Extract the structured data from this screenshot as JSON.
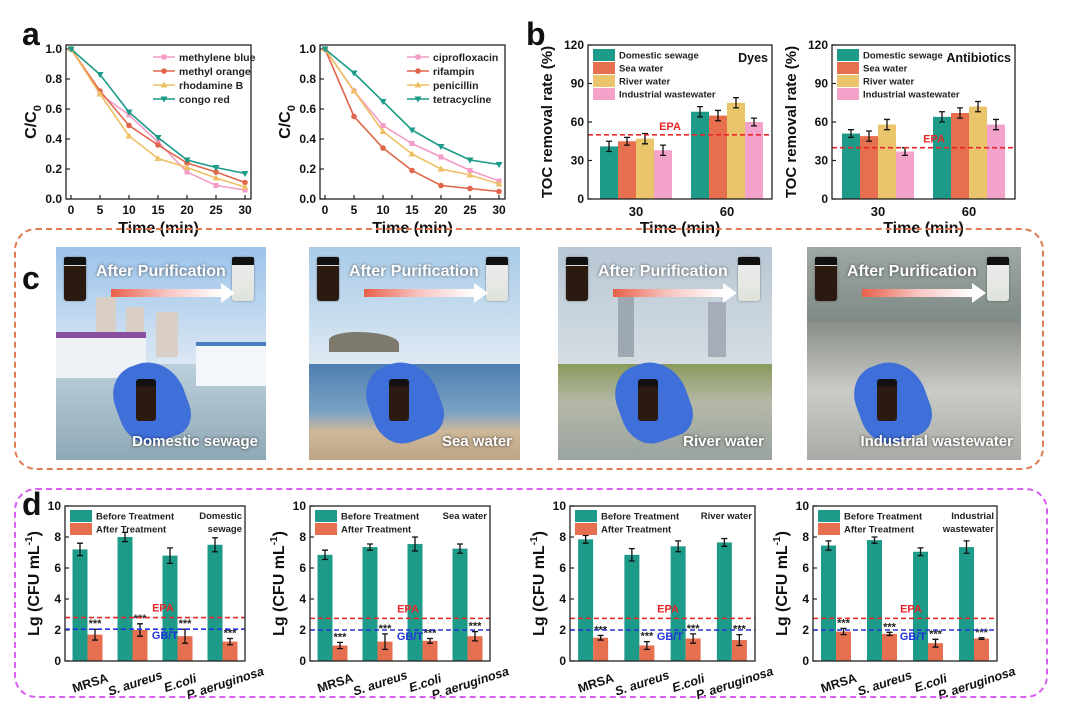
{
  "panel_labels": {
    "a": "a",
    "b": "b",
    "c": "c",
    "d": "d"
  },
  "colors": {
    "teal": "#1e9b88",
    "orange": "#e66f4f",
    "yellow": "#ebc56b",
    "pink": "#f3a2c9",
    "epa": "#e8262a",
    "gbt": "#2233dd"
  },
  "panel_c": {
    "after_label": "After Purification",
    "photos": [
      {
        "caption": "Domestic sewage"
      },
      {
        "caption": "Sea water"
      },
      {
        "caption": "River water"
      },
      {
        "caption": "Industrial wastewater"
      }
    ]
  },
  "chart_data": [
    {
      "panel": "a",
      "type": "line",
      "title": "",
      "xlabel": "Time (min)",
      "ylabel": "C/C",
      "ylabel_sub": "0",
      "x": [
        0,
        5,
        10,
        15,
        20,
        25,
        30
      ],
      "xlim": [
        0,
        30
      ],
      "ylim": [
        0,
        1.0
      ],
      "xticks": [
        "0",
        "5",
        "10",
        "15",
        "20",
        "25",
        "30"
      ],
      "yticks": [
        "0.0",
        "0.2",
        "0.4",
        "0.6",
        "0.8",
        "1.0"
      ],
      "legend": "top-right",
      "series": [
        {
          "name": "methylene blue",
          "color": "#f49bc7",
          "marker": "square",
          "values": [
            1.0,
            0.7,
            0.56,
            0.38,
            0.18,
            0.09,
            0.06
          ]
        },
        {
          "name": "methyl orange",
          "color": "#e0654a",
          "marker": "circle",
          "values": [
            1.0,
            0.72,
            0.49,
            0.36,
            0.24,
            0.18,
            0.11
          ]
        },
        {
          "name": "rhodamine B",
          "color": "#eebf63",
          "marker": "triangle-up",
          "values": [
            1.0,
            0.7,
            0.42,
            0.27,
            0.21,
            0.14,
            0.08
          ]
        },
        {
          "name": "congo red",
          "color": "#1a9a87",
          "marker": "triangle-down",
          "values": [
            1.0,
            0.83,
            0.58,
            0.41,
            0.26,
            0.21,
            0.17
          ]
        }
      ]
    },
    {
      "panel": "a",
      "type": "line",
      "title": "",
      "xlabel": "Time (min)",
      "ylabel": "C/C",
      "ylabel_sub": "0",
      "x": [
        0,
        5,
        10,
        15,
        20,
        25,
        30
      ],
      "xlim": [
        0,
        30
      ],
      "ylim": [
        0,
        1.0
      ],
      "xticks": [
        "0",
        "5",
        "10",
        "15",
        "20",
        "25",
        "30"
      ],
      "yticks": [
        "0.0",
        "0.2",
        "0.4",
        "0.6",
        "0.8",
        "1.0"
      ],
      "legend": "top-right",
      "series": [
        {
          "name": "ciprofloxacin",
          "color": "#f49bc7",
          "marker": "square",
          "values": [
            1.0,
            0.72,
            0.49,
            0.37,
            0.28,
            0.19,
            0.12
          ]
        },
        {
          "name": "rifampin",
          "color": "#e0654a",
          "marker": "circle",
          "values": [
            1.0,
            0.55,
            0.34,
            0.19,
            0.09,
            0.07,
            0.05
          ]
        },
        {
          "name": "penicillin",
          "color": "#eebf63",
          "marker": "triangle-up",
          "values": [
            1.0,
            0.72,
            0.45,
            0.3,
            0.2,
            0.16,
            0.1
          ]
        },
        {
          "name": "tetracycline",
          "color": "#1a9a87",
          "marker": "triangle-down",
          "values": [
            1.0,
            0.84,
            0.65,
            0.46,
            0.35,
            0.26,
            0.23
          ]
        }
      ]
    },
    {
      "panel": "b",
      "type": "bar",
      "title": "Dyes",
      "xlabel": "Time (min)",
      "ylabel": "TOC removal rate (%)",
      "categories": [
        "30",
        "60"
      ],
      "ylim": [
        0,
        120
      ],
      "yticks": [
        "0",
        "30",
        "60",
        "90",
        "120"
      ],
      "legend": "top-left",
      "series": [
        {
          "name": "Domestic sewage",
          "color": "#1e9b88",
          "values": [
            41,
            68
          ],
          "errors": [
            4,
            4
          ]
        },
        {
          "name": "Sea water",
          "color": "#e66f4f",
          "values": [
            45,
            65
          ],
          "errors": [
            3,
            4
          ]
        },
        {
          "name": "River water",
          "color": "#ebc56b",
          "values": [
            47,
            75
          ],
          "errors": [
            4,
            4
          ]
        },
        {
          "name": "Industrial wastewater",
          "color": "#f3a2c9",
          "values": [
            38,
            60
          ],
          "errors": [
            4,
            3
          ]
        }
      ],
      "reference_lines": [
        {
          "label": "EPA",
          "value": 50,
          "color": "#e8262a"
        }
      ]
    },
    {
      "panel": "b",
      "type": "bar",
      "title": "Antibiotics",
      "xlabel": "Time (min)",
      "ylabel": "TOC removal rate (%)",
      "categories": [
        "30",
        "60"
      ],
      "ylim": [
        0,
        120
      ],
      "yticks": [
        "0",
        "30",
        "60",
        "90",
        "120"
      ],
      "legend": "top-left",
      "series": [
        {
          "name": "Domestic sewage",
          "color": "#1e9b88",
          "values": [
            51,
            64
          ],
          "errors": [
            3,
            4
          ]
        },
        {
          "name": "Sea water",
          "color": "#e66f4f",
          "values": [
            49,
            67
          ],
          "errors": [
            4,
            4
          ]
        },
        {
          "name": "River water",
          "color": "#ebc56b",
          "values": [
            58,
            72
          ],
          "errors": [
            4,
            4
          ]
        },
        {
          "name": "Industrial wastewater",
          "color": "#f3a2c9",
          "values": [
            37,
            58
          ],
          "errors": [
            3,
            4
          ]
        }
      ],
      "reference_lines": [
        {
          "label": "EPA",
          "value": 40,
          "color": "#e8262a"
        }
      ]
    },
    {
      "panel": "d",
      "type": "bar",
      "title": "Domestic sewage",
      "xlabel": "",
      "ylabel": "Lg (CFU mL",
      "ylabel_sup": "-1",
      "ylabel_tail": ")",
      "categories": [
        "MRSA",
        "S. aureus",
        "E.coli",
        "P. aeruginosa"
      ],
      "ylim": [
        0,
        10
      ],
      "yticks": [
        "0",
        "2",
        "4",
        "6",
        "8",
        "10"
      ],
      "legend": "top-left",
      "series": [
        {
          "name": "Before Treatment",
          "color": "#1e9b88",
          "values": [
            7.2,
            8.0,
            6.8,
            7.5
          ],
          "errors": [
            0.4,
            0.3,
            0.5,
            0.45
          ]
        },
        {
          "name": "After Treatment",
          "color": "#e66f4f",
          "values": [
            1.7,
            2.0,
            1.6,
            1.25
          ],
          "errors": [
            0.35,
            0.4,
            0.45,
            0.2
          ]
        }
      ],
      "significance": [
        "***",
        "***",
        "***",
        "***"
      ],
      "reference_lines": [
        {
          "label": "EPA",
          "value": 2.8,
          "color": "#e8262a"
        },
        {
          "label": "GB/T",
          "value": 2.05,
          "color": "#2233dd"
        }
      ]
    },
    {
      "panel": "d",
      "type": "bar",
      "title": "Sea water",
      "xlabel": "",
      "ylabel": "Lg (CFU mL",
      "ylabel_sup": "-1",
      "ylabel_tail": ")",
      "categories": [
        "MRSA",
        "S. aureus",
        "E.coli",
        "P. aeruginosa"
      ],
      "ylim": [
        0,
        10
      ],
      "yticks": [
        "0",
        "2",
        "4",
        "6",
        "8",
        "10"
      ],
      "legend": "top-left",
      "series": [
        {
          "name": "Before Treatment",
          "color": "#1e9b88",
          "values": [
            6.85,
            7.35,
            7.55,
            7.25
          ],
          "errors": [
            0.3,
            0.2,
            0.45,
            0.3
          ]
        },
        {
          "name": "After Treatment",
          "color": "#e66f4f",
          "values": [
            1.0,
            1.25,
            1.3,
            1.6
          ],
          "errors": [
            0.2,
            0.5,
            0.15,
            0.3
          ]
        }
      ],
      "significance": [
        "***",
        "***",
        "***",
        "***"
      ],
      "reference_lines": [
        {
          "label": "EPA",
          "value": 2.75,
          "color": "#e8262a"
        },
        {
          "label": "GB/T",
          "value": 2.0,
          "color": "#2233dd"
        }
      ]
    },
    {
      "panel": "d",
      "type": "bar",
      "title": "River water",
      "xlabel": "",
      "ylabel": "Lg (CFU mL",
      "ylabel_sup": "-1",
      "ylabel_tail": ")",
      "categories": [
        "MRSA",
        "S. aureus",
        "E.coli",
        "P. aeruginosa"
      ],
      "ylim": [
        0,
        10
      ],
      "yticks": [
        "0",
        "2",
        "4",
        "6",
        "8",
        "10"
      ],
      "legend": "top-left",
      "series": [
        {
          "name": "Before Treatment",
          "color": "#1e9b88",
          "values": [
            7.85,
            6.85,
            7.4,
            7.65
          ],
          "errors": [
            0.25,
            0.4,
            0.35,
            0.25
          ]
        },
        {
          "name": "After Treatment",
          "color": "#e66f4f",
          "values": [
            1.5,
            1.0,
            1.45,
            1.35
          ],
          "errors": [
            0.15,
            0.25,
            0.3,
            0.35
          ]
        }
      ],
      "significance": [
        "***",
        "***",
        "***",
        "***"
      ],
      "reference_lines": [
        {
          "label": "EPA",
          "value": 2.75,
          "color": "#e8262a"
        },
        {
          "label": "GB/T",
          "value": 2.0,
          "color": "#2233dd"
        }
      ]
    },
    {
      "panel": "d",
      "type": "bar",
      "title": "Industrial wastewater",
      "xlabel": "",
      "ylabel": "Lg (CFU mL",
      "ylabel_sup": "-1",
      "ylabel_tail": ")",
      "categories": [
        "MRSA",
        "S. aureus",
        "E.coli",
        "P. aeruginosa"
      ],
      "ylim": [
        0,
        10
      ],
      "yticks": [
        "0",
        "2",
        "4",
        "6",
        "8",
        "10"
      ],
      "legend": "top-left",
      "series": [
        {
          "name": "Before Treatment",
          "color": "#1e9b88",
          "values": [
            7.45,
            7.8,
            7.05,
            7.35
          ],
          "errors": [
            0.3,
            0.2,
            0.25,
            0.4
          ]
        },
        {
          "name": "After Treatment",
          "color": "#e66f4f",
          "values": [
            1.9,
            1.75,
            1.15,
            1.45
          ],
          "errors": [
            0.2,
            0.1,
            0.25,
            0.05
          ]
        }
      ],
      "significance": [
        "***",
        "***",
        "***",
        "***"
      ],
      "reference_lines": [
        {
          "label": "EPA",
          "value": 2.75,
          "color": "#e8262a"
        },
        {
          "label": "GB/T",
          "value": 2.0,
          "color": "#2233dd"
        }
      ]
    }
  ]
}
